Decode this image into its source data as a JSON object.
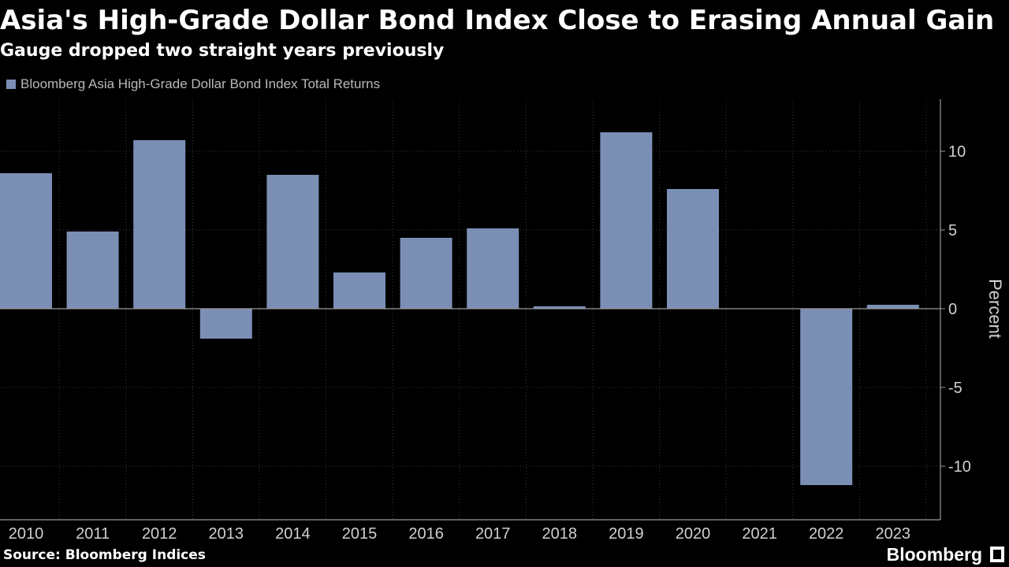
{
  "title": "Asia's High-Grade Dollar Bond Index Close to Erasing Annual Gain",
  "subtitle": "Gauge dropped two straight years previously",
  "source": "Source: Bloomberg Indices",
  "brand": "Bloomberg",
  "chart_data": {
    "type": "bar",
    "categories": [
      "2010",
      "2011",
      "2012",
      "2013",
      "2014",
      "2015",
      "2016",
      "2017",
      "2018",
      "2019",
      "2020",
      "2021",
      "2022",
      "2023"
    ],
    "series": [
      {
        "name": "Bloomberg Asia High-Grade Dollar Bond Index Total Returns",
        "values": [
          8.6,
          4.9,
          10.7,
          -1.9,
          8.5,
          2.3,
          4.5,
          5.1,
          0.15,
          11.2,
          7.6,
          0.0,
          -11.2,
          0.25
        ]
      }
    ],
    "ylabel": "Percent",
    "ylim": [
      -13.4,
      13.3
    ],
    "yticks": [
      10,
      5,
      0,
      -5,
      -10
    ],
    "ytick_labels": [
      "10",
      "5",
      "0",
      "-5",
      "-10"
    ],
    "grid": true,
    "legend_position": "top-left",
    "colors": {
      "bar": "#7b8fb5",
      "background": "#000000",
      "grid": "#3a3a3a",
      "axis_text": "#d0d0d0",
      "zero_line": "#9a9a9a"
    }
  }
}
